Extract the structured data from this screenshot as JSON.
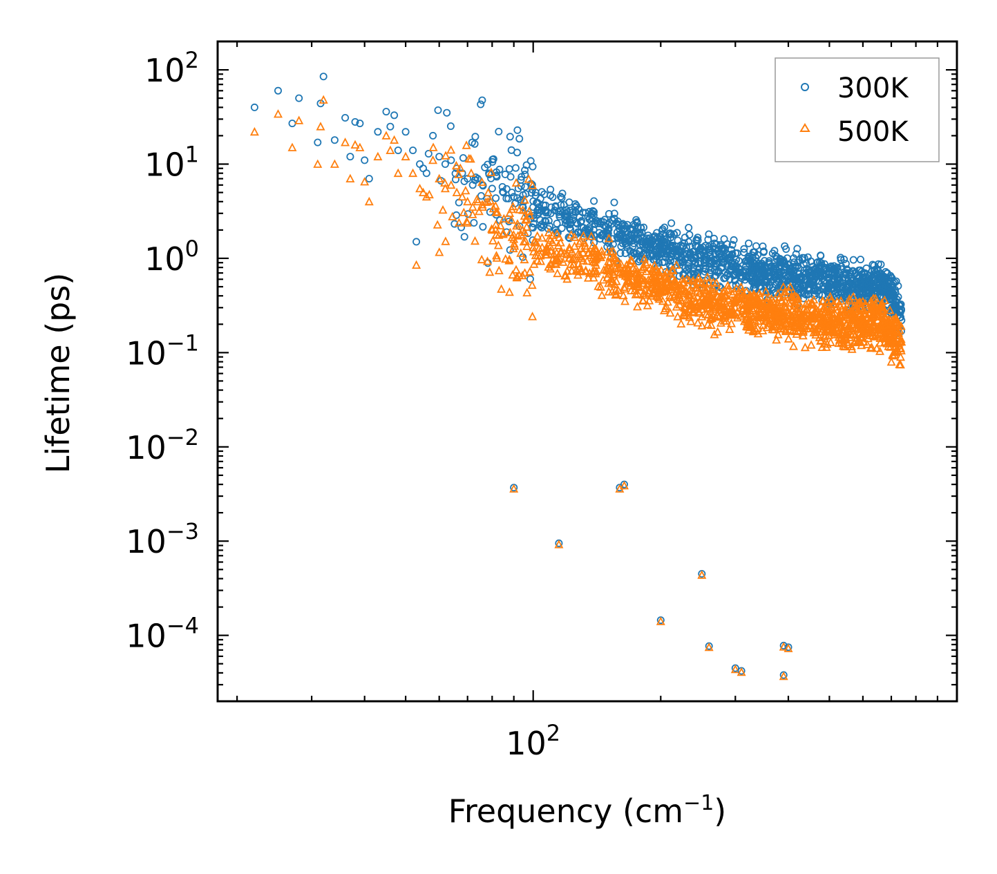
{
  "chart_data": {
    "type": "scatter",
    "title": "",
    "xlabel": "Frequency (cm",
    "xlabel_sup": "−1",
    "xlabel_end": ")",
    "ylabel": "Lifetime (ps)",
    "xscale": "log",
    "yscale": "log",
    "xlim": [
      18,
      1000
    ],
    "ylim": [
      2e-05,
      200
    ],
    "x_ticks": [
      {
        "value": 100,
        "base": "10",
        "exp": "2"
      }
    ],
    "y_ticks": [
      {
        "value": 100,
        "base": "10",
        "exp": "2"
      },
      {
        "value": 10,
        "base": "10",
        "exp": "1"
      },
      {
        "value": 1,
        "base": "10",
        "exp": "0"
      },
      {
        "value": 0.1,
        "base": "10",
        "exp": "−1"
      },
      {
        "value": 0.01,
        "base": "10",
        "exp": "−2"
      },
      {
        "value": 0.001,
        "base": "10",
        "exp": "−3"
      },
      {
        "value": 0.0001,
        "base": "10",
        "exp": "−4"
      }
    ],
    "legend": {
      "position": "top-right"
    },
    "series": [
      {
        "name": "300K",
        "color": "#1f77b4",
        "marker": "circle",
        "x": [
          22,
          25,
          27,
          28,
          31,
          31.5,
          32,
          34,
          36,
          37,
          38,
          39,
          40,
          41,
          43,
          45,
          46,
          47,
          48,
          50,
          52,
          53,
          54,
          55,
          56,
          58,
          60,
          62,
          64,
          66,
          68,
          70,
          72,
          74,
          76,
          80,
          85,
          90,
          95,
          100,
          110,
          120,
          130,
          140,
          150,
          160,
          170,
          180,
          200,
          220,
          240,
          260,
          280,
          300,
          330,
          360,
          400,
          430,
          460,
          500,
          550,
          600,
          650,
          700,
          740
        ],
        "y": [
          40,
          60,
          27,
          50,
          17,
          44,
          85,
          18,
          31,
          12,
          28,
          27,
          11,
          7,
          22,
          36,
          25,
          33,
          14,
          22,
          14,
          1.5,
          10,
          9,
          8,
          20,
          12,
          10,
          11,
          9,
          8,
          7,
          6,
          7,
          6,
          5.5,
          5,
          4.5,
          4,
          3.5,
          3,
          2.8,
          2.5,
          2.3,
          2,
          1.8,
          1.6,
          1.5,
          1.3,
          1.1,
          1.0,
          0.95,
          0.9,
          0.8,
          0.75,
          0.7,
          0.65,
          0.6,
          0.6,
          0.55,
          0.5,
          0.5,
          0.55,
          0.4,
          0.22
        ]
      },
      {
        "name": "500K",
        "color": "#ff7f0e",
        "marker": "triangle",
        "x": [
          22,
          25,
          27,
          28,
          31,
          31.5,
          32,
          34,
          36,
          37,
          38,
          39,
          40,
          41,
          43,
          45,
          46,
          47,
          48,
          50,
          52,
          53,
          54,
          55,
          56,
          58,
          60,
          62,
          64,
          66,
          68,
          70,
          72,
          74,
          76,
          80,
          85,
          90,
          95,
          100,
          110,
          120,
          130,
          140,
          150,
          160,
          170,
          180,
          200,
          220,
          240,
          260,
          280,
          300,
          330,
          360,
          400,
          430,
          460,
          500,
          550,
          600,
          650,
          700,
          740
        ],
        "y": [
          22,
          34,
          15,
          29,
          10,
          25,
          48,
          10,
          17,
          7,
          16,
          15,
          6.5,
          4,
          12,
          20,
          14,
          18,
          8,
          12,
          8,
          0.85,
          5.5,
          5,
          4.5,
          11,
          7,
          5.5,
          6,
          5,
          4.5,
          4,
          3.5,
          4,
          3.5,
          2,
          1.8,
          1.6,
          1.5,
          1.3,
          1.2,
          1.1,
          1.0,
          0.9,
          0.8,
          0.7,
          0.65,
          0.6,
          0.5,
          0.42,
          0.38,
          0.35,
          0.33,
          0.3,
          0.28,
          0.26,
          0.25,
          0.24,
          0.23,
          0.22,
          0.2,
          0.2,
          0.22,
          0.16,
          0.13
        ]
      }
    ],
    "outliers": {
      "x": [
        90,
        115,
        160,
        164,
        200,
        250,
        260,
        300,
        310,
        390,
        400,
        390
      ],
      "y": [
        0.0037,
        0.00095,
        0.0037,
        0.004,
        0.000145,
        0.00045,
        7.7e-05,
        4.5e-05,
        4.2e-05,
        7.8e-05,
        7.5e-05,
        3.8e-05
      ]
    }
  }
}
